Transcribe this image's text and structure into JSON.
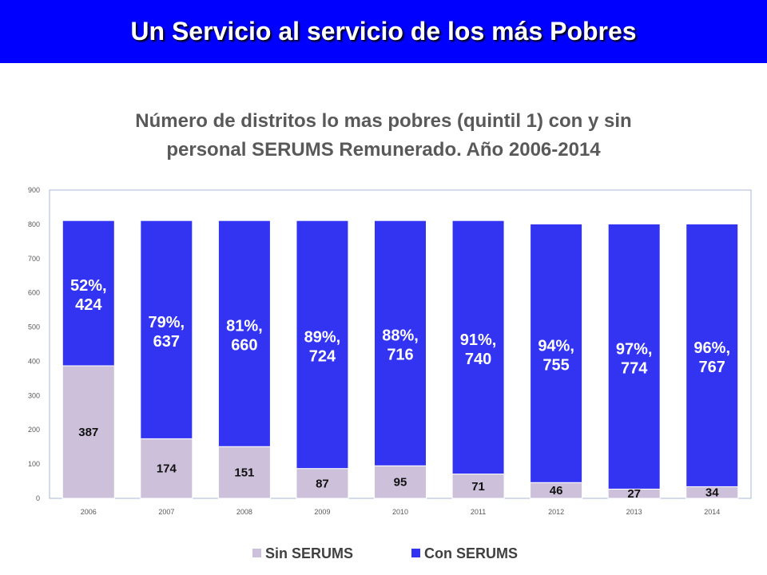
{
  "header": {
    "title": "Un Servicio al servicio de los más Pobres"
  },
  "colors": {
    "header_bg": "#0000FF",
    "title_gray": "#595959",
    "plot_border": "#A9B8D8"
  },
  "chart_data": {
    "type": "bar",
    "stacked": true,
    "title_lines": [
      "Número de distritos lo mas pobres (quintil 1) con y sin",
      "personal SERUMS Remunerado. Año 2006-2014"
    ],
    "xlabel": "",
    "ylabel": "",
    "categories": [
      "2006",
      "2007",
      "2008",
      "2009",
      "2010",
      "2011",
      "2012",
      "2013",
      "2014"
    ],
    "series": [
      {
        "name": "Sin SERUMS",
        "color": "#CCC0DA",
        "values": [
          387,
          174,
          151,
          87,
          95,
          71,
          46,
          27,
          34
        ]
      },
      {
        "name": "Con SERUMS",
        "color": "#3333F2",
        "values": [
          424,
          637,
          660,
          724,
          716,
          740,
          755,
          774,
          767
        ],
        "percent_labels": [
          "52%",
          "79%",
          "81%",
          "89%",
          "88%",
          "91%",
          "94%",
          "97%",
          "96%"
        ]
      }
    ],
    "ylim": [
      0,
      900
    ],
    "yticks": [
      0,
      100,
      200,
      300,
      400,
      500,
      600,
      700,
      800,
      900
    ],
    "grid": false,
    "legend": "bottom"
  }
}
